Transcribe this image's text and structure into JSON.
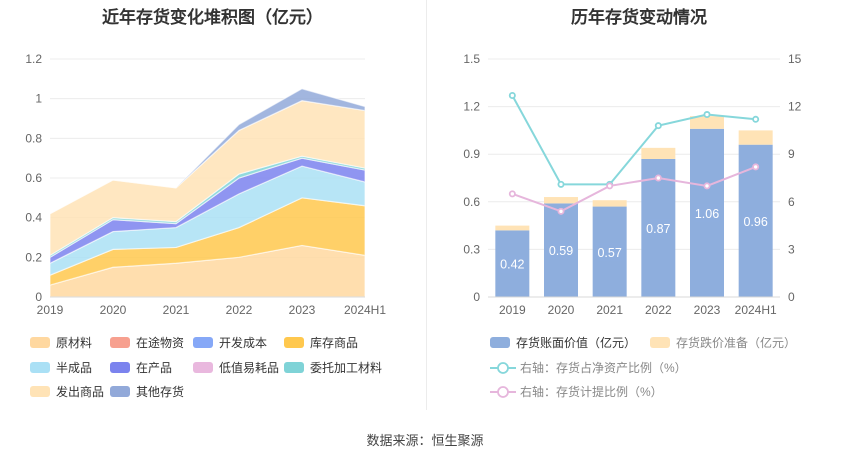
{
  "source_text": "数据来源：恒生聚源",
  "chart_data": [
    {
      "type": "area",
      "title": "近年存货变化堆积图（亿元）",
      "categories": [
        "2019",
        "2020",
        "2021",
        "2022",
        "2023",
        "2024H1"
      ],
      "ylim": [
        0,
        1.2
      ],
      "yticks": [
        "0",
        "0.2",
        "0.4",
        "0.6",
        "0.8",
        "1",
        "1.2"
      ],
      "grid": true,
      "legend_position": "bottom",
      "series": [
        {
          "name": "原材料",
          "color": "#ffd8a0",
          "values": [
            0.06,
            0.15,
            0.17,
            0.2,
            0.26,
            0.21
          ]
        },
        {
          "name": "在途物资",
          "color": "#f7a08f",
          "values": [
            0,
            0,
            0,
            0,
            0,
            0
          ]
        },
        {
          "name": "开发成本",
          "color": "#86a8f7",
          "values": [
            0,
            0,
            0,
            0,
            0,
            0
          ]
        },
        {
          "name": "库存商品",
          "color": "#ffc84e",
          "values": [
            0.05,
            0.09,
            0.08,
            0.15,
            0.24,
            0.25
          ]
        },
        {
          "name": "半成品",
          "color": "#aae0f5",
          "values": [
            0.06,
            0.09,
            0.1,
            0.17,
            0.16,
            0.12
          ]
        },
        {
          "name": "在产品",
          "color": "#7b83ee",
          "values": [
            0.03,
            0.06,
            0.02,
            0.08,
            0.04,
            0.06
          ]
        },
        {
          "name": "低值易耗品",
          "color": "#e9b8de",
          "values": [
            0,
            0,
            0,
            0,
            0,
            0
          ]
        },
        {
          "name": "委托加工材料",
          "color": "#7fd3d7",
          "values": [
            0.01,
            0.01,
            0.01,
            0.02,
            0.01,
            0.01
          ]
        },
        {
          "name": "发出商品",
          "color": "#ffe3b6",
          "values": [
            0.21,
            0.19,
            0.17,
            0.22,
            0.28,
            0.29
          ]
        },
        {
          "name": "其他存货",
          "color": "#92a9d9",
          "values": [
            0,
            0,
            0,
            0.03,
            0.06,
            0.02
          ]
        }
      ]
    },
    {
      "type": "bar",
      "title": "历年存货变动情况",
      "categories": [
        "2019",
        "2020",
        "2021",
        "2022",
        "2023",
        "2024H1"
      ],
      "ylim": [
        0,
        1.5
      ],
      "yticks": [
        "0",
        "0.3",
        "0.6",
        "0.9",
        "1.2",
        "1.5"
      ],
      "y2lim": [
        0,
        15
      ],
      "y2ticks": [
        "0",
        "3",
        "6",
        "9",
        "12",
        "15"
      ],
      "grid": true,
      "legend_position": "bottom",
      "series": [
        {
          "name": "存货账面价值（亿元）",
          "color": "#8eaedd",
          "values": [
            0.42,
            0.59,
            0.57,
            0.87,
            1.06,
            0.96
          ],
          "labels": [
            "0.42",
            "0.59",
            "0.57",
            "0.87",
            "1.06",
            "0.96"
          ]
        },
        {
          "name": "存货跌价准备（亿元）",
          "color": "#ffe3b6",
          "values": [
            0.03,
            0.04,
            0.04,
            0.07,
            0.08,
            0.09
          ]
        },
        {
          "name": "右轴：存货占净资产比例（%）",
          "color": "#86d7db",
          "axis": "right",
          "values": [
            12.7,
            7.1,
            7.1,
            10.8,
            11.5,
            11.2
          ]
        },
        {
          "name": "右轴：存货计提比例（%）",
          "color": "#e6b6dc",
          "axis": "right",
          "values": [
            6.5,
            5.4,
            7.0,
            7.5,
            7.0,
            8.2
          ]
        }
      ]
    }
  ]
}
